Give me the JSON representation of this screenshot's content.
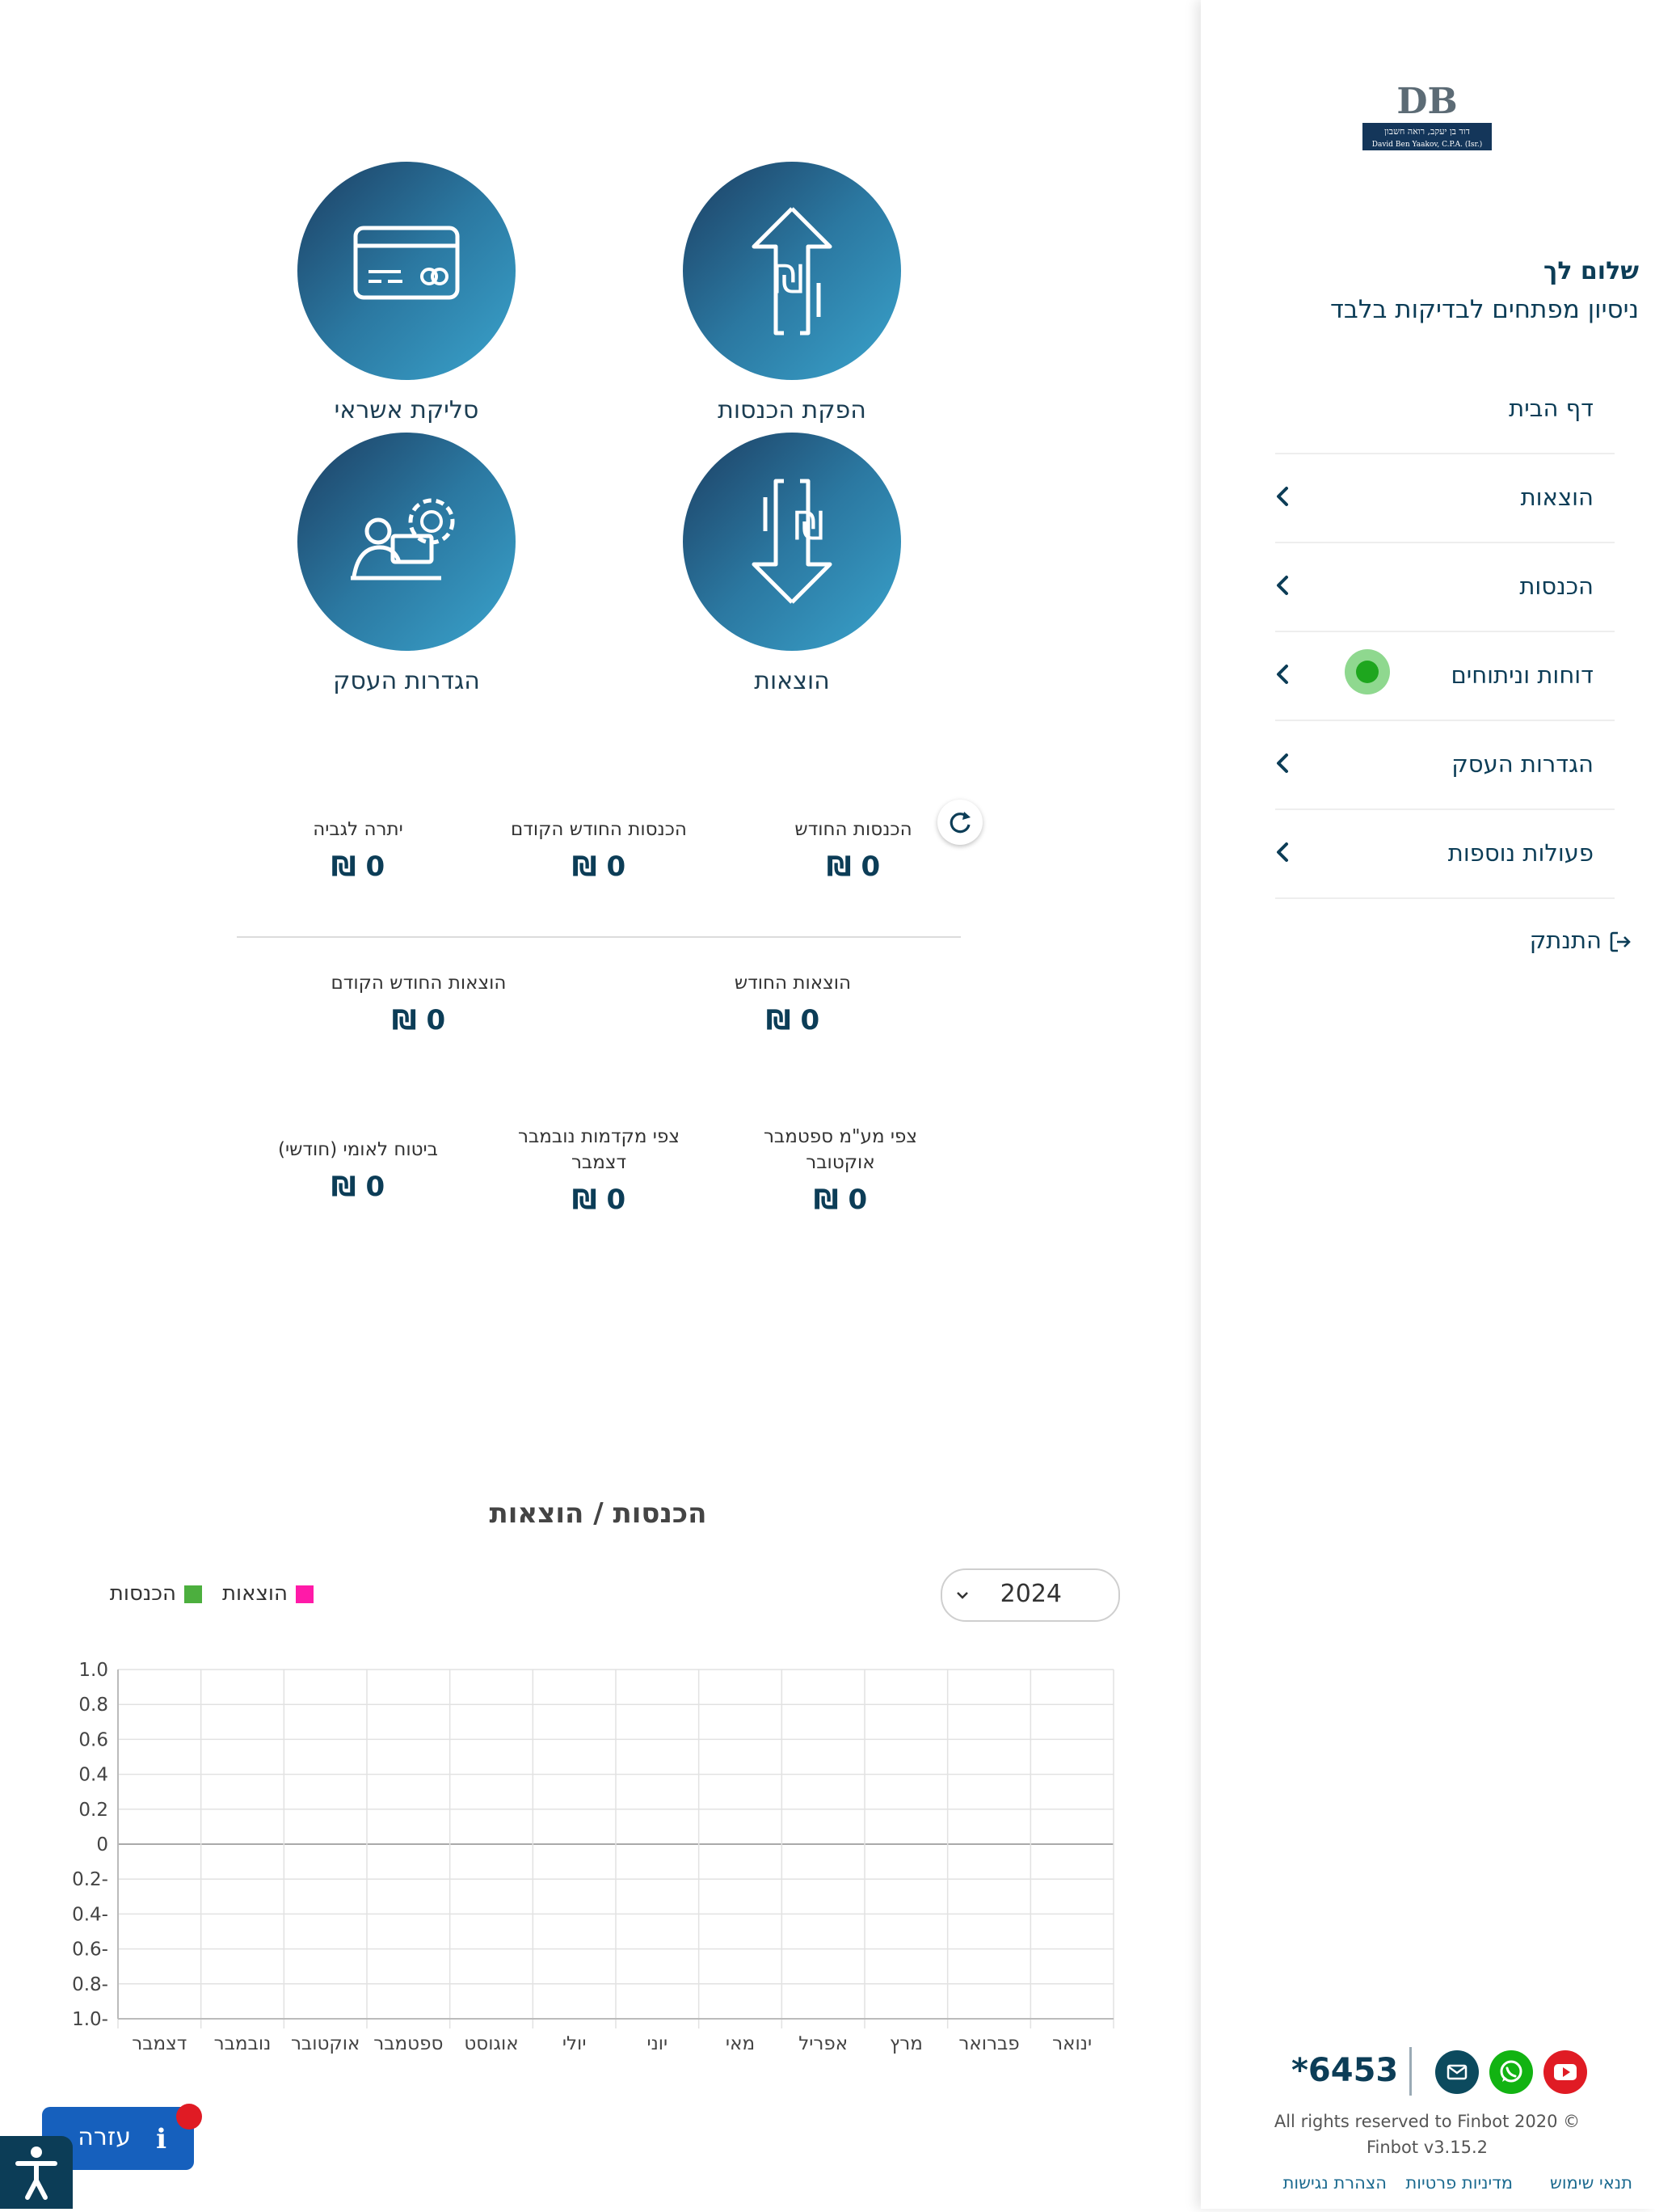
{
  "sidebar": {
    "logo": {
      "monogram": "DB",
      "line1": "דוד בן יעקב, רואה חשבון",
      "line2": "David Ben Yaakov, C.P.A. (Isr.)"
    },
    "greeting": "שלום לך",
    "business_name": "ניסיון מפתחים לבדיקות בלבד",
    "nav": [
      {
        "label": "דף הבית"
      },
      {
        "label": "הוצאות"
      },
      {
        "label": "הכנסות"
      },
      {
        "label": "דוחות וניתוחים"
      },
      {
        "label": "הגדרות העסק"
      },
      {
        "label": "פעולות נוספות"
      }
    ],
    "logout": "התנתק",
    "footer": {
      "phone": "*6453",
      "copyright": "All rights reserved to Finbot 2020 ©",
      "version": "Finbot v3.15.2",
      "links": [
        "תנאי שימוש",
        "מדיניות פרטיות",
        "הצהרת נגישות"
      ]
    }
  },
  "tiles": [
    {
      "label": "הפקת הכנסות",
      "icon": "shekel-arrow-up-icon"
    },
    {
      "label": "סליקת אשראי",
      "icon": "credit-card-icon"
    },
    {
      "label": "הוצאות",
      "icon": "shekel-arrow-down-icon"
    },
    {
      "label": "הגדרות העסק",
      "icon": "business-settings-icon"
    }
  ],
  "stats": {
    "income_month": {
      "label": "הכנסות החודש",
      "value": "0 ₪"
    },
    "income_prev": {
      "label": "הכנסות החודש הקודם",
      "value": "0 ₪"
    },
    "balance": {
      "label": "יתרה לגביה",
      "value": "0 ₪"
    },
    "expense_month": {
      "label": "הוצאות החודש",
      "value": "0 ₪"
    },
    "expense_prev": {
      "label": "הוצאות החודש הקודם",
      "value": "0 ₪"
    },
    "vat": {
      "label": "צפי מע\"מ ספטמבר אוקטובר",
      "value": "0 ₪"
    },
    "advances": {
      "label": "צפי מקדמות נובמבר דצמבר",
      "value": "0 ₪"
    },
    "national_ins": {
      "label": "ביטוח לאומי (חודשי)",
      "value": "0 ₪"
    }
  },
  "chart": {
    "title": "הכנסות / הוצאות",
    "year": "2024",
    "legend": {
      "income": "הכנסות",
      "expenses": "הוצאות"
    }
  },
  "chart_data": {
    "type": "bar",
    "title": "הכנסות / הוצאות",
    "categories": [
      "ינואר",
      "פברואר",
      "מרץ",
      "אפריל",
      "מאי",
      "יוני",
      "יולי",
      "אוגוסט",
      "ספטמבר",
      "אוקטובר",
      "נובמבר",
      "דצמבר"
    ],
    "series": [
      {
        "name": "הכנסות",
        "color": "#4caf3e",
        "values": [
          0,
          0,
          0,
          0,
          0,
          0,
          0,
          0,
          0,
          0,
          0,
          0
        ]
      },
      {
        "name": "הוצאות",
        "color": "#ff1aa8",
        "values": [
          0,
          0,
          0,
          0,
          0,
          0,
          0,
          0,
          0,
          0,
          0,
          0
        ]
      }
    ],
    "yticks": [
      "1.0",
      "0.8",
      "0.6",
      "0.4",
      "0.2",
      "0",
      "0.2-",
      "0.4-",
      "0.6-",
      "0.8-",
      "1.0-"
    ],
    "ylim": [
      -1,
      1
    ],
    "grid": true
  },
  "widgets": {
    "help": "עזרה",
    "help_icon": "i"
  },
  "colors": {
    "primary": "#0c3d57",
    "income": "#4caf3e",
    "expenses": "#ff1aa8",
    "help": "#1660bd",
    "badge": "#e01b24"
  }
}
